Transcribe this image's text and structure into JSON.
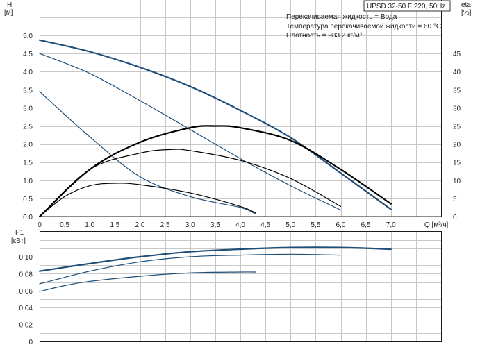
{
  "chart_data": [
    {
      "type": "line",
      "title": "UPSD 32-50 F 220, 50Hz",
      "info_lines": [
        "Перекачиваемая жидкость = Вода",
        "Температура перекачиваемой жидкости = 60 °C",
        "Плотность = 983.2 кг/м³"
      ],
      "ylabel": "H",
      "yunit": "[м]",
      "y2label": "eta",
      "y2unit": "[%]",
      "xlabel": "Q [м³/ч]",
      "xlim": [
        0,
        8.0
      ],
      "ylim": [
        0,
        6.0
      ],
      "y2lim": [
        0,
        50
      ],
      "xticks": [
        "0",
        "0,5",
        "1,0",
        "1,5",
        "2,0",
        "2,5",
        "3,0",
        "3,5",
        "4,0",
        "4,5",
        "5,0",
        "5,5",
        "6,0",
        "6,5",
        "7,0"
      ],
      "yticks": [
        "0.0",
        "0.5",
        "1.0",
        "1.5",
        "2.0",
        "2.5",
        "3.0",
        "3.5",
        "4.0",
        "4.5",
        "5.0"
      ],
      "y2ticks": [
        "0",
        "5",
        "10",
        "15",
        "20",
        "25",
        "30",
        "35",
        "40",
        "45"
      ],
      "series": [
        {
          "axis": "H",
          "color": "#1f4e79",
          "width": 2.2,
          "x": [
            0,
            1,
            2,
            3,
            4,
            5,
            6,
            7
          ],
          "y": [
            4.87,
            4.55,
            4.12,
            3.59,
            2.93,
            2.18,
            1.2,
            0.2
          ]
        },
        {
          "axis": "H",
          "color": "#1f4e79",
          "width": 1.2,
          "x": [
            0,
            1,
            2,
            3,
            4,
            5,
            6
          ],
          "y": [
            4.5,
            3.95,
            3.2,
            2.4,
            1.6,
            0.85,
            0.18
          ]
        },
        {
          "axis": "H",
          "color": "#1f4e79",
          "width": 1.2,
          "x": [
            0,
            1,
            2,
            3,
            4,
            4.3
          ],
          "y": [
            3.45,
            2.2,
            1.1,
            0.55,
            0.25,
            0.07
          ]
        },
        {
          "axis": "eta",
          "color": "#000000",
          "width": 2.2,
          "x": [
            0,
            1,
            2,
            3,
            3.5,
            4,
            5,
            6,
            7
          ],
          "y": [
            0,
            13,
            20.5,
            24.5,
            25,
            24.5,
            21,
            13,
            3.5
          ]
        },
        {
          "axis": "eta",
          "color": "#000000",
          "width": 1.2,
          "x": [
            0,
            1,
            2,
            2.6,
            3,
            4,
            5,
            6
          ],
          "y": [
            0,
            13,
            17.5,
            18.5,
            18.2,
            15.5,
            10.5,
            2.8
          ]
        },
        {
          "axis": "eta",
          "color": "#000000",
          "width": 1.2,
          "x": [
            0,
            0.5,
            1,
            1.5,
            2,
            3,
            4,
            4.3
          ],
          "y": [
            0,
            5.5,
            8.5,
            9.2,
            8.8,
            6.5,
            2.8,
            1
          ]
        }
      ]
    },
    {
      "type": "line",
      "ylabel": "P1",
      "yunit": "[кВт]",
      "xlim": [
        0,
        8.0
      ],
      "ylim": [
        0,
        0.12
      ],
      "yticks": [
        "0",
        "0,02",
        "0,04",
        "0,06",
        "0,08",
        "0,10"
      ],
      "series": [
        {
          "color": "#1f4e79",
          "width": 2.2,
          "x": [
            0,
            1,
            2,
            3,
            4,
            5,
            6,
            7
          ],
          "y": [
            0.083,
            0.092,
            0.1,
            0.106,
            0.109,
            0.111,
            0.111,
            0.109
          ]
        },
        {
          "color": "#1f4e79",
          "width": 1.2,
          "x": [
            0,
            1,
            2,
            3,
            4,
            5,
            6
          ],
          "y": [
            0.068,
            0.083,
            0.094,
            0.1,
            0.102,
            0.103,
            0.102
          ]
        },
        {
          "color": "#1f4e79",
          "width": 1.2,
          "x": [
            0,
            0.5,
            1,
            2,
            3,
            4,
            4.3
          ],
          "y": [
            0.059,
            0.066,
            0.071,
            0.077,
            0.081,
            0.082,
            0.082
          ]
        }
      ]
    }
  ]
}
